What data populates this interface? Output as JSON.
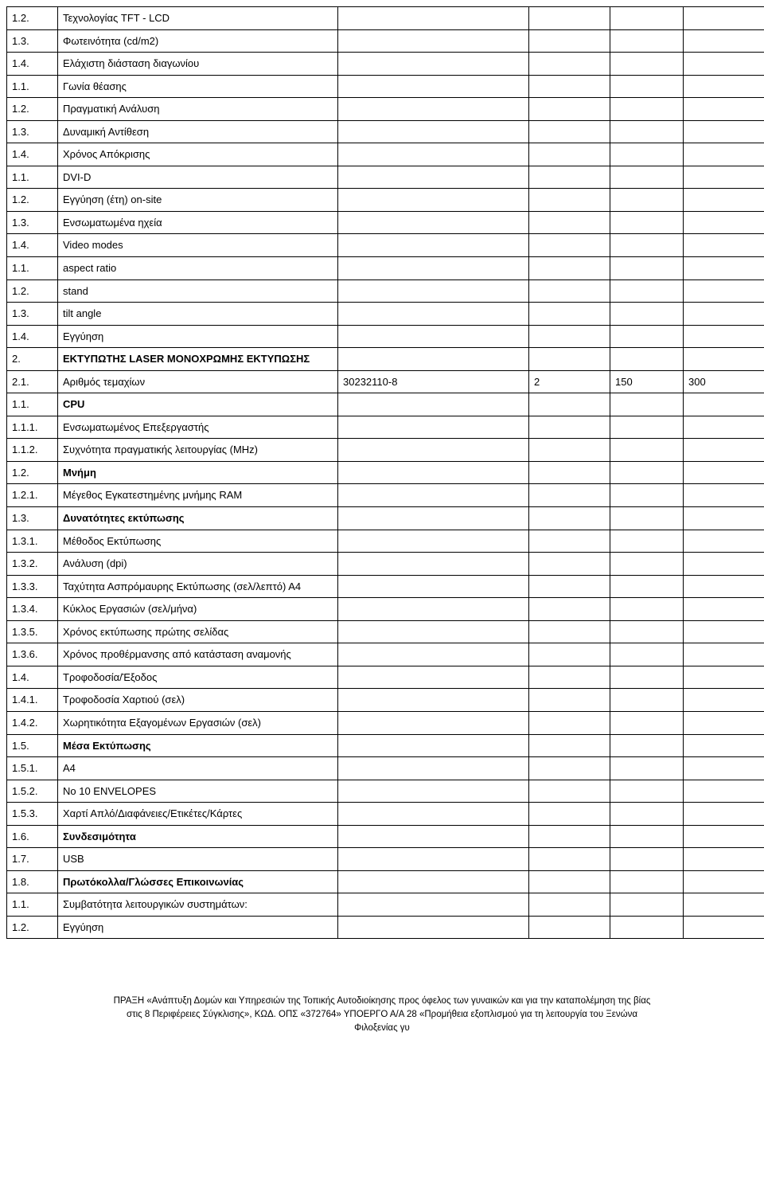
{
  "rows": [
    {
      "num": "1.2.",
      "desc": "Τεχνολογίας TFT - LCD",
      "bold": false,
      "b": "",
      "c": "",
      "d": "",
      "e": ""
    },
    {
      "num": "1.3.",
      "desc": "Φωτεινότητα (cd/m2)",
      "bold": false,
      "b": "",
      "c": "",
      "d": "",
      "e": ""
    },
    {
      "num": "1.4.",
      "desc": "Ελάχιστη διάσταση διαγωνίου",
      "bold": false,
      "b": "",
      "c": "",
      "d": "",
      "e": ""
    },
    {
      "num": "1.1.",
      "desc": "Γωνία θέασης",
      "bold": false,
      "b": "",
      "c": "",
      "d": "",
      "e": ""
    },
    {
      "num": "1.2.",
      "desc": "Πραγματική Ανάλυση",
      "bold": false,
      "b": "",
      "c": "",
      "d": "",
      "e": ""
    },
    {
      "num": "1.3.",
      "desc": "Δυναμική Αντίθεση",
      "bold": false,
      "b": "",
      "c": "",
      "d": "",
      "e": ""
    },
    {
      "num": "1.4.",
      "desc": "Χρόνος Απόκρισης",
      "bold": false,
      "b": "",
      "c": "",
      "d": "",
      "e": ""
    },
    {
      "num": "1.1.",
      "desc": "DVI-D",
      "bold": false,
      "b": "",
      "c": "",
      "d": "",
      "e": ""
    },
    {
      "num": "1.2.",
      "desc": "Εγγύηση (έτη) on-site",
      "bold": false,
      "b": "",
      "c": "",
      "d": "",
      "e": ""
    },
    {
      "num": "1.3.",
      "desc": "Ενσωματωμένα ηχεία",
      "bold": false,
      "b": "",
      "c": "",
      "d": "",
      "e": ""
    },
    {
      "num": "1.4.",
      "desc": "Video modes",
      "bold": false,
      "b": "",
      "c": "",
      "d": "",
      "e": ""
    },
    {
      "num": "1.1.",
      "desc": "aspect ratio",
      "bold": false,
      "b": "",
      "c": "",
      "d": "",
      "e": ""
    },
    {
      "num": "1.2.",
      "desc": "stand",
      "bold": false,
      "b": "",
      "c": "",
      "d": "",
      "e": ""
    },
    {
      "num": "1.3.",
      "desc": "tilt angle",
      "bold": false,
      "b": "",
      "c": "",
      "d": "",
      "e": ""
    },
    {
      "num": "1.4.",
      "desc": "Εγγύηση",
      "bold": false,
      "b": "",
      "c": "",
      "d": "",
      "e": ""
    },
    {
      "num": "2.",
      "desc": "ΕΚΤΥΠΩΤΗΣ LASER ΜΟΝΟΧΡΩΜΗΣ ΕΚΤΥΠΩΣΗΣ",
      "bold": true,
      "b": "",
      "c": "",
      "d": "",
      "e": ""
    },
    {
      "num": "2.1.",
      "desc": "Αριθμός τεμαχίων",
      "bold": false,
      "b": "30232110-8",
      "c": "2",
      "d": "150",
      "e": "300"
    },
    {
      "num": "1.1.",
      "desc": "CPU",
      "bold": true,
      "b": "",
      "c": "",
      "d": "",
      "e": ""
    },
    {
      "num": "1.1.1.",
      "desc": "Ενσωματωμένος Επεξεργαστής",
      "bold": false,
      "b": "",
      "c": "",
      "d": "",
      "e": ""
    },
    {
      "num": "1.1.2.",
      "desc": "Συχνότητα πραγματικής λειτουργίας (MHz)",
      "bold": false,
      "b": "",
      "c": "",
      "d": "",
      "e": ""
    },
    {
      "num": "1.2.",
      "desc": "Μνήμη",
      "bold": true,
      "b": "",
      "c": "",
      "d": "",
      "e": ""
    },
    {
      "num": "1.2.1.",
      "desc": "Μέγεθος Εγκατεστημένης μνήμης RAM",
      "bold": false,
      "b": "",
      "c": "",
      "d": "",
      "e": ""
    },
    {
      "num": "1.3.",
      "desc": "Δυνατότητες εκτύπωσης",
      "bold": true,
      "b": "",
      "c": "",
      "d": "",
      "e": ""
    },
    {
      "num": "1.3.1.",
      "desc": "Μέθοδος Εκτύπωσης",
      "bold": false,
      "b": "",
      "c": "",
      "d": "",
      "e": ""
    },
    {
      "num": "1.3.2.",
      "desc": "Ανάλυση (dpi)",
      "bold": false,
      "b": "",
      "c": "",
      "d": "",
      "e": ""
    },
    {
      "num": "1.3.3.",
      "desc": "Ταχύτητα Ασπρόμαυρης Εκτύπωσης (σελ/λεπτό) Α4",
      "bold": false,
      "b": "",
      "c": "",
      "d": "",
      "e": ""
    },
    {
      "num": "1.3.4.",
      "desc": "Κύκλος Εργασιών (σελ/μήνα)",
      "bold": false,
      "b": "",
      "c": "",
      "d": "",
      "e": ""
    },
    {
      "num": "1.3.5.",
      "desc": "Χρόνος εκτύπωσης πρώτης σελίδας",
      "bold": false,
      "b": "",
      "c": "",
      "d": "",
      "e": ""
    },
    {
      "num": "1.3.6.",
      "desc": "Χρόνος προθέρμανσης από κατάσταση αναμονής",
      "bold": false,
      "b": "",
      "c": "",
      "d": "",
      "e": ""
    },
    {
      "num": "1.4.",
      "desc": "Τροφοδοσία/Έξοδος",
      "bold": false,
      "b": "",
      "c": "",
      "d": "",
      "e": ""
    },
    {
      "num": "1.4.1.",
      "desc": "Τροφοδοσία Χαρτιού (σελ)",
      "bold": false,
      "b": "",
      "c": "",
      "d": "",
      "e": ""
    },
    {
      "num": "1.4.2.",
      "desc": "Χωρητικότητα Εξαγομένων Εργασιών (σελ)",
      "bold": false,
      "b": "",
      "c": "",
      "d": "",
      "e": ""
    },
    {
      "num": "1.5.",
      "desc": "Μέσα Εκτύπωσης",
      "bold": true,
      "b": "",
      "c": "",
      "d": "",
      "e": ""
    },
    {
      "num": "1.5.1.",
      "desc": "A4",
      "bold": false,
      "b": "",
      "c": "",
      "d": "",
      "e": ""
    },
    {
      "num": "1.5.2.",
      "desc": "No 10 ENVELOPES",
      "bold": false,
      "b": "",
      "c": "",
      "d": "",
      "e": ""
    },
    {
      "num": "1.5.3.",
      "desc": "Χαρτί Απλό/Διαφάνειες/Ετικέτες/Κάρτες",
      "bold": false,
      "b": "",
      "c": "",
      "d": "",
      "e": ""
    },
    {
      "num": "1.6.",
      "desc": "Συνδεσιμότητα",
      "bold": true,
      "b": "",
      "c": "",
      "d": "",
      "e": ""
    },
    {
      "num": "1.7.",
      "desc": "USB",
      "bold": false,
      "b": "",
      "c": "",
      "d": "",
      "e": ""
    },
    {
      "num": "1.8.",
      "desc": "Πρωτόκολλα/Γλώσσες Επικοινωνίας",
      "bold": true,
      "b": "",
      "c": "",
      "d": "",
      "e": ""
    },
    {
      "num": "1.1.",
      "desc": "Συμβατότητα λειτουργικών συστημάτων:",
      "bold": false,
      "b": "",
      "c": "",
      "d": "",
      "e": ""
    },
    {
      "num": "1.2.",
      "desc": "Εγγύηση",
      "bold": false,
      "b": "",
      "c": "",
      "d": "",
      "e": ""
    }
  ],
  "footer": {
    "line1": "ΠΡΑΞΗ «Ανάπτυξη Δομών και Υπηρεσιών της Τοπικής Αυτοδιοίκησης προς όφελος των γυναικών και για    την καταπολέμηση της βίας",
    "line2": "στις 8 Περιφέρειες Σύγκλισης», ΚΩΔ. ΟΠΣ «372764» ΥΠΟΕΡΓΟ Α/Α 28 «Προμήθεια εξοπλισμού για τη λειτουργία του Ξενώνα",
    "line3": "Φιλοξενίας γυ"
  }
}
